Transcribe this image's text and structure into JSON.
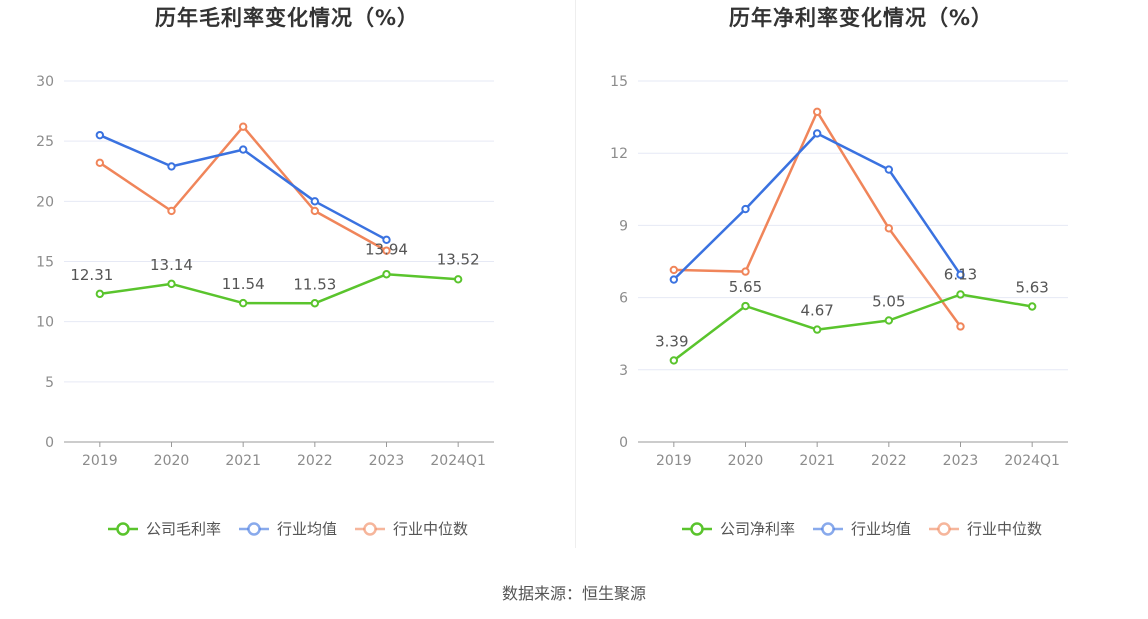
{
  "source_text": "数据来源：恒生聚源",
  "colors": {
    "company": "#5ac42d",
    "industry_avg": "#3a72e0",
    "industry_median": "#f0855a",
    "grid": "#e6e9f5",
    "axis": "#8c8c8c"
  },
  "chart_data": [
    {
      "type": "line",
      "title": "历年毛利率变化情况（%）",
      "categories": [
        "2019",
        "2020",
        "2021",
        "2022",
        "2023",
        "2024Q1"
      ],
      "ylim": [
        0,
        30
      ],
      "yticks": [
        0,
        5,
        10,
        15,
        20,
        25,
        30
      ],
      "grid": true,
      "legend_position": "bottom",
      "series": [
        {
          "name": "公司毛利率",
          "color_key": "company",
          "values": [
            12.31,
            13.14,
            11.54,
            11.53,
            13.94,
            13.52
          ],
          "labels": [
            "12.31",
            "13.14",
            "11.54",
            "11.53",
            "13.94",
            "13.52"
          ]
        },
        {
          "name": "行业均值",
          "color_key": "industry_avg",
          "values": [
            25.5,
            22.9,
            24.3,
            20.0,
            16.8,
            null
          ]
        },
        {
          "name": "行业中位数",
          "color_key": "industry_median",
          "values": [
            23.2,
            19.2,
            26.2,
            19.2,
            15.9,
            null
          ]
        }
      ]
    },
    {
      "type": "line",
      "title": "历年净利率变化情况（%）",
      "categories": [
        "2019",
        "2020",
        "2021",
        "2022",
        "2023",
        "2024Q1"
      ],
      "ylim": [
        0,
        15
      ],
      "yticks": [
        0,
        3,
        6,
        9,
        12,
        15
      ],
      "grid": true,
      "legend_position": "bottom",
      "series": [
        {
          "name": "公司净利率",
          "color_key": "company",
          "values": [
            3.39,
            5.65,
            4.67,
            5.05,
            6.13,
            5.63
          ],
          "labels": [
            "3.39",
            "5.65",
            "4.67",
            "5.05",
            "6.13",
            "5.63"
          ]
        },
        {
          "name": "行业均值",
          "color_key": "industry_avg",
          "values": [
            6.75,
            9.68,
            12.82,
            11.32,
            6.95,
            null
          ]
        },
        {
          "name": "行业中位数",
          "color_key": "industry_median",
          "values": [
            7.15,
            7.08,
            13.72,
            8.88,
            4.8,
            null
          ]
        }
      ]
    }
  ]
}
